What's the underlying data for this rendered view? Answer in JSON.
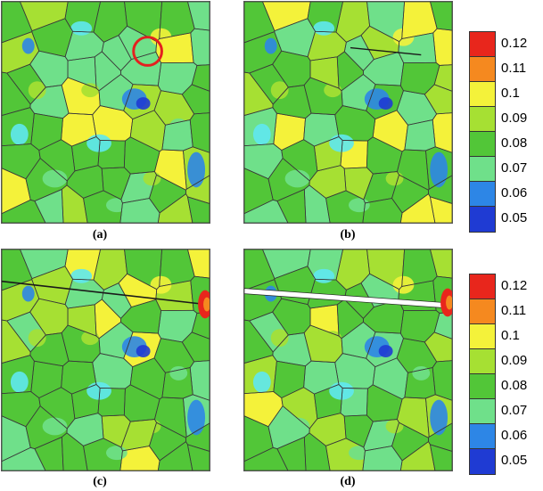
{
  "panels": [
    {
      "id": "a",
      "label": "(a)",
      "variant": "initial",
      "highlight": true
    },
    {
      "id": "b",
      "label": "(b)",
      "variant": "crack-start",
      "highlight": false
    },
    {
      "id": "c",
      "label": "(c)",
      "variant": "crack-through",
      "highlight": false
    },
    {
      "id": "d",
      "label": "(d)",
      "variant": "crack-open",
      "highlight": false
    }
  ],
  "colorbars": [
    {
      "ticks": [
        "0.12",
        "0.11",
        "0.1",
        "0.09",
        "0.08",
        "0.07",
        "0.06",
        "0.05"
      ]
    },
    {
      "ticks": [
        "0.12",
        "0.11",
        "0.1",
        "0.09",
        "0.08",
        "0.07",
        "0.06",
        "0.05"
      ]
    }
  ],
  "colors": {
    "scale": [
      "#e8261c",
      "#f5891f",
      "#f4f23a",
      "#a6e033",
      "#52c638",
      "#6fe08a",
      "#5fe8ef",
      "#2d86e6",
      "#1f3bd3"
    ],
    "grain_edge": "#3a3a3a",
    "crack": "#1a1a1a",
    "opened_crack": "#ffffff",
    "highlight_circle": "#e4201f"
  }
}
